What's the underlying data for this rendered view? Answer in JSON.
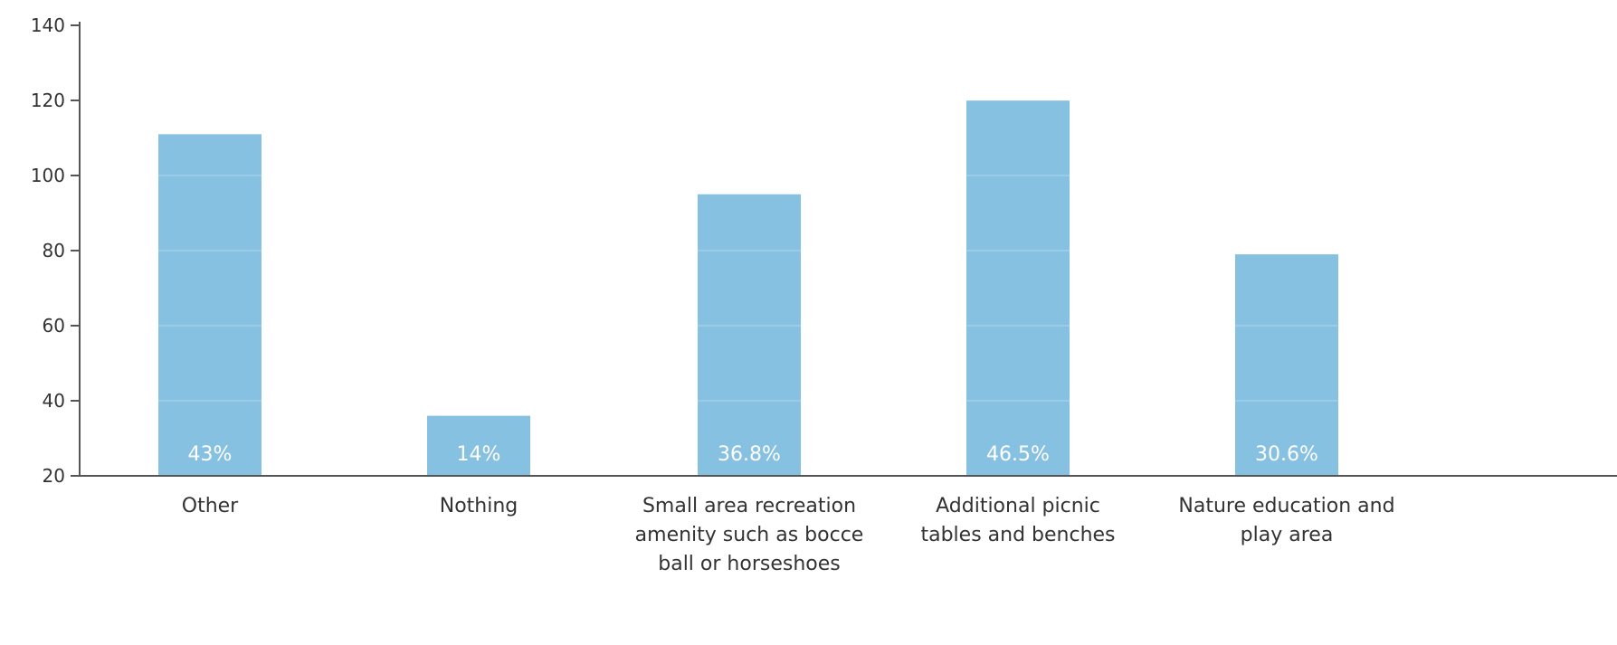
{
  "chart_data": {
    "type": "bar",
    "categories": [
      [
        "Other"
      ],
      [
        "Nothing"
      ],
      [
        "Small area recreation",
        "amenity such as bocce",
        "ball or horseshoes"
      ],
      [
        "Additional picnic",
        "tables and benches"
      ],
      [
        "Nature education and",
        "play area"
      ]
    ],
    "values": [
      111,
      36,
      95,
      120,
      79
    ],
    "data_labels": [
      "43%",
      "14%",
      "36.8%",
      "46.5%",
      "30.6%"
    ],
    "ylim": [
      20,
      140
    ],
    "yticks": [
      20,
      40,
      60,
      80,
      100,
      120,
      140
    ],
    "grid": true,
    "bar_color": "#86c1e2",
    "title": "",
    "xlabel": "",
    "ylabel": ""
  }
}
